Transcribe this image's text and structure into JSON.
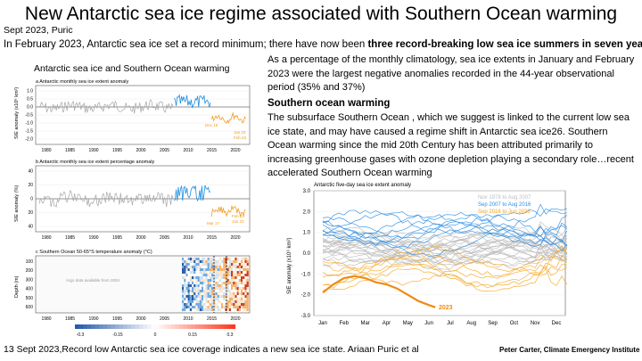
{
  "slide": {
    "title": "New Antarctic sea ice regime associated with Southern Ocean warming",
    "meta": "Sept 2023, Puric",
    "intro_plain": "In February 2023, Antarctic sea ice set a record minimum; there have now been ",
    "intro_bold": "three record-breaking low sea ice summers in seven years.",
    "left_panel_title": "Antarctic sea ice and Southern Ocean warming",
    "paragraph1": "As a percentage of the monthly climatology, sea ice extents in January and February 2023 were the largest negative anomalies recorded in the 44-year observational period (35% and 37%)",
    "section_heading": "Southern ocean warming",
    "paragraph2": "The subsurface Southern Ocean , which we suggest is linked to the current low sea ice state, and may have caused a regime shift in Antarctic sea ice26. Southern Ocean warming since the mid 20th Century has been attributed primarily to increasing greenhouse gases with ozone depletion playing a secondary role…recent accelerated Southern Ocean warming",
    "footer_left": "13 Sept 2023,Record low Antarctic sea ice coverage indicates a new sea ice state. Ariaan Puric et al",
    "footer_right": "Peter Carter, Climate Emergency Institute"
  },
  "chart_data": [
    {
      "type": "line",
      "panel": "a",
      "title": "a Antarctic monthly sea ice extent anomaly",
      "ylabel": "SIE anomaly (x10⁶ km²)",
      "ylim": [
        -2.5,
        1.5
      ],
      "yticks": [
        "1.0",
        "0.5",
        "0.0",
        "-0.5",
        "-1.0",
        "-1.5",
        "-2.0"
      ],
      "xticks": [
        "1980",
        "1985",
        "1990",
        "1995",
        "2000",
        "2005",
        "2010",
        "2015",
        "2020"
      ],
      "annotations": [
        "Dec 16",
        "Jan 23",
        "Feb 23"
      ],
      "colors": {
        "early": "#a6a6a6",
        "mid": "#1f8fe0",
        "late": "#f39a1e"
      }
    },
    {
      "type": "line",
      "panel": "b",
      "title": "b Antarctic monthly sea ice extent percentage anomaly",
      "ylabel": "SIE anomaly (%)",
      "ylim": [
        -40,
        40
      ],
      "yticks": [
        "40",
        "20",
        "0",
        "20",
        "40"
      ],
      "xticks": [
        "1980",
        "1985",
        "1990",
        "1995",
        "2000",
        "2005",
        "2010",
        "2015",
        "2020"
      ],
      "annotations": [
        "Mar 17",
        "Feb 23",
        "Jan 23"
      ]
    },
    {
      "type": "heatmap",
      "panel": "c",
      "title": "c Southern Ocean 50-65°S temperature anomaly (°C)",
      "ylabel": "Depth (m)",
      "yticks": [
        "100",
        "200",
        "300",
        "400",
        "500",
        "600"
      ],
      "xticks": [
        "1980",
        "1985",
        "1990",
        "1995",
        "2000",
        "2005",
        "2010",
        "2015",
        "2020"
      ],
      "note": "Argo data available from 2004",
      "colorbar_ticks": [
        "-0.3",
        "-0.15",
        "0",
        "0.15",
        "0.3"
      ]
    },
    {
      "type": "line",
      "panel": "right",
      "title": "Antarctic five-day sea ice extent anomaly",
      "ylabel": "SIE anomaly (x10⁶ km²)",
      "ylim": [
        -3.0,
        3.0
      ],
      "yticks": [
        "3.0",
        "2.0",
        "1.0",
        "0.0",
        "-1.0",
        "-2.0",
        "-3.0"
      ],
      "xticks": [
        "Jan",
        "Feb",
        "Mar",
        "Apr",
        "May",
        "Jun",
        "Jul",
        "Aug",
        "Sep",
        "Oct",
        "Nov",
        "Dec"
      ],
      "legend": [
        {
          "name": "Nov 1978 to Aug 2007",
          "color": "#bdbdbd"
        },
        {
          "name": "Sep 2007 to Aug 2016",
          "color": "#2e8fe6"
        },
        {
          "name": "Sep 2016 to Jun 2023",
          "color": "#f5a623"
        }
      ],
      "highlight_label": "2023",
      "highlight_series": {
        "name": "2023",
        "x": [
          0,
          0.5,
          1.0,
          1.5,
          2.0,
          2.5,
          3.0,
          3.5,
          4.0,
          4.5,
          5.0,
          5.3
        ],
        "y": [
          -1.9,
          -1.5,
          -1.2,
          -1.1,
          -1.2,
          -1.4,
          -1.5,
          -1.7,
          -2.0,
          -2.3,
          -2.5,
          -2.6
        ]
      }
    }
  ]
}
